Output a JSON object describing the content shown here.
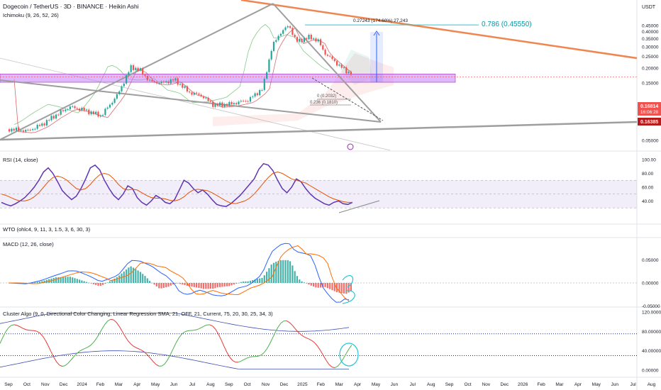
{
  "header": {
    "symbol_title": "Dogecoin / TetherUS · 3D · BINANCE · Heikin Ashi",
    "indicator_ichimoku": "Ichimoku (9, 26, 52, 26)",
    "currency": "USDT"
  },
  "annotations": {
    "target_label": "0.786 (0.45550)",
    "measure_label": "0.27243 (174.60%) 27,243",
    "fib_0": "0 (0.2032)",
    "fib_236": "0.236 (0.1810)"
  },
  "price_tags": {
    "current": "0.16814",
    "countdown": "16:06:28",
    "low": "0.16385"
  },
  "colors": {
    "bull": "#26a69a",
    "bear": "#ef5350",
    "zone": "#c77dff",
    "trend_orange": "#f0854f",
    "trend_gray": "#9e9e9e",
    "rsi": "#5e35b1",
    "rsi_ma": "#e65100",
    "target_line": "#26c6da"
  },
  "chart_data": [
    {
      "type": "candlestick",
      "title": "Dogecoin / TetherUS · 3D · BINANCE · Heikin Ashi",
      "ylabel": "USDT",
      "y_scale": "log",
      "y_ticks": [
        "0.45000",
        "0.40000",
        "0.35000",
        "0.30000",
        "0.25000",
        "0.20000",
        "0.15000",
        "0.10000",
        "0.05000"
      ],
      "x_ticks": [
        "Sep",
        "Oct",
        "Nov",
        "Dec",
        "2024",
        "Feb",
        "Mar",
        "Apr",
        "May",
        "Jun",
        "Jul",
        "Aug",
        "Sep",
        "Oct",
        "Nov",
        "Dec",
        "2025",
        "Feb",
        "Mar",
        "Apr",
        "May",
        "Jun",
        "Jul",
        "Aug",
        "Sep",
        "Oct",
        "Nov",
        "Dec",
        "2026",
        "Feb",
        "Mar",
        "Apr",
        "May",
        "Jun",
        "Jul",
        "Aug"
      ],
      "price_path": [
        [
          "2023-09-01",
          0.062
        ],
        [
          "2023-10-01",
          0.06
        ],
        [
          "2023-10-25",
          0.068
        ],
        [
          "2023-11-15",
          0.08
        ],
        [
          "2023-12-10",
          0.095
        ],
        [
          "2024-01-01",
          0.09
        ],
        [
          "2024-02-01",
          0.08
        ],
        [
          "2024-02-28",
          0.12
        ],
        [
          "2024-03-20",
          0.205
        ],
        [
          "2024-04-05",
          0.19
        ],
        [
          "2024-04-20",
          0.155
        ],
        [
          "2024-05-10",
          0.15
        ],
        [
          "2024-06-01",
          0.16
        ],
        [
          "2024-06-25",
          0.125
        ],
        [
          "2024-07-15",
          0.118
        ],
        [
          "2024-08-05",
          0.098
        ],
        [
          "2024-09-01",
          0.1
        ],
        [
          "2024-10-01",
          0.108
        ],
        [
          "2024-10-25",
          0.135
        ],
        [
          "2024-11-10",
          0.3
        ],
        [
          "2024-11-25",
          0.4
        ],
        [
          "2024-12-08",
          0.45
        ],
        [
          "2024-12-20",
          0.33
        ],
        [
          "2025-01-10",
          0.36
        ],
        [
          "2025-01-25",
          0.34
        ],
        [
          "2025-02-05",
          0.27
        ],
        [
          "2025-02-25",
          0.22
        ],
        [
          "2025-03-10",
          0.19
        ],
        [
          "2025-03-25",
          0.175
        ],
        [
          "2025-04-02",
          0.168
        ]
      ],
      "support_zone": [
        0.152,
        0.178
      ],
      "target_price": 0.4555,
      "current_price": 0.16814,
      "low_price": 0.16385
    },
    {
      "type": "line",
      "title": "RSI (14, close)",
      "y_ticks": [
        "100.00",
        "80.00",
        "60.00",
        "40.00"
      ],
      "ylim": [
        23,
        100
      ],
      "bands": [
        30,
        50,
        70
      ],
      "series": [
        {
          "values": [
            38,
            35,
            33,
            36,
            40,
            45,
            52,
            60,
            70,
            82,
            88,
            80,
            68,
            55,
            48,
            42,
            47,
            58,
            72,
            88,
            92,
            85,
            70,
            58,
            48,
            42,
            50,
            62,
            58,
            45,
            38,
            34,
            40,
            48,
            44,
            38,
            36,
            42,
            56,
            70,
            66,
            58,
            52,
            56,
            50,
            42,
            35,
            33,
            32,
            36,
            42,
            48,
            56,
            64,
            72,
            86,
            94,
            92,
            84,
            70,
            58,
            52,
            60,
            72,
            68,
            58,
            50,
            44,
            40,
            36,
            34,
            38,
            40,
            36,
            35,
            38
          ]
        },
        {
          "values": [
            50,
            48,
            45,
            42,
            40,
            40,
            42,
            46,
            52,
            60,
            68,
            74,
            76,
            74,
            70,
            64,
            58,
            56,
            58,
            64,
            72,
            78,
            80,
            78,
            72,
            64,
            58,
            56,
            57,
            56,
            52,
            48,
            45,
            44,
            44,
            43,
            41,
            40,
            42,
            46,
            52,
            56,
            57,
            56,
            55,
            52,
            48,
            44,
            40,
            37,
            36,
            38,
            40,
            44,
            50,
            58,
            66,
            74,
            80,
            82,
            80,
            76,
            72,
            70,
            68,
            66,
            62,
            58,
            54,
            50,
            46,
            43,
            41,
            39,
            38,
            38
          ]
        }
      ]
    },
    {
      "type": "line",
      "title": "WTO (ohlc4, 9, 11, 3, 1.5, 3, 6, 30, 3)"
    },
    {
      "type": "bar",
      "title": "MACD (12, 26, close)",
      "y_ticks": [
        "0.05000",
        "0.00000",
        "-0.05000"
      ],
      "ylim": [
        -0.075,
        0.1
      ]
    },
    {
      "type": "line",
      "title": "Cluster Algo (9, 0, Directional Color Changing, Linear Regression SMA, 21, OFF, 21,   Current, 75, 20, 30, 25, 34, 3)",
      "y_ticks": [
        "120.00000",
        "80.00000",
        "40.00000",
        "0.00000"
      ],
      "ylim": [
        0,
        120
      ],
      "bands": [
        30,
        75
      ]
    }
  ]
}
